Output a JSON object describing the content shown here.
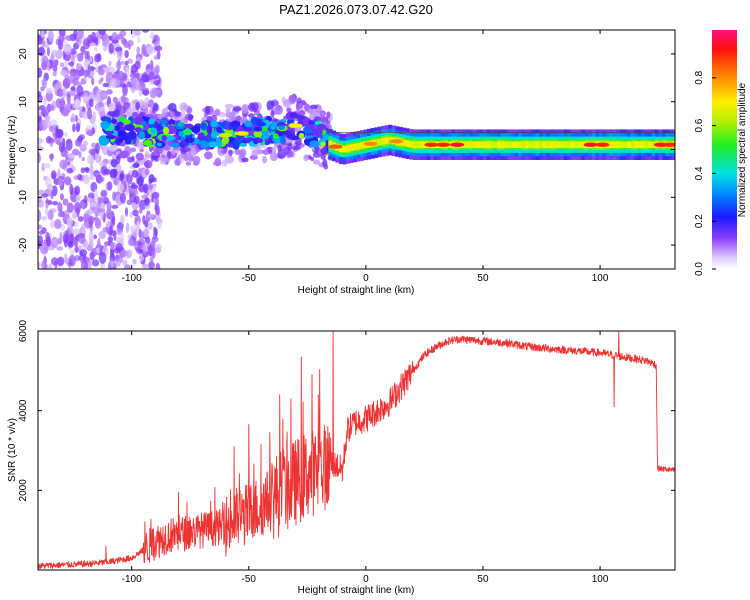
{
  "title": "PAZ1.2026.073.07.42.G20",
  "chart_data": [
    {
      "type": "heatmap",
      "title": "PAZ1.2026.073.07.42.G20",
      "xlabel": "Height of straight line (km)",
      "ylabel": "Frequency (Hz)",
      "xlim": [
        -140,
        132
      ],
      "ylim": [
        -25,
        25
      ],
      "xticks": [
        -100,
        -50,
        0,
        50,
        100
      ],
      "yticks": [
        -20,
        -10,
        0,
        10,
        20
      ],
      "xticklabels": [
        "-100",
        "-50",
        "0",
        "50",
        "100"
      ],
      "yticklabels": [
        "-20",
        "-10",
        "0",
        "10",
        "20"
      ],
      "colormap": "rainbow (violet to red)",
      "ridge": {
        "x": [
          -140,
          -120,
          -100,
          -80,
          -60,
          -40,
          -30,
          -20,
          -15,
          -10,
          0,
          10,
          20,
          30,
          50,
          70,
          90,
          110,
          132
        ],
        "frequency": [
          3,
          4,
          4,
          3,
          3,
          4,
          5,
          3,
          1,
          0,
          1,
          2,
          1,
          1,
          1,
          1,
          1,
          1,
          1
        ]
      },
      "colorbar": {
        "label": "Normalized spectral amplitude",
        "range": [
          0,
          1
        ],
        "ticks": [
          0.0,
          0.2,
          0.4,
          0.6,
          0.8
        ],
        "ticklabels": [
          "0.0",
          "0.2",
          "0.4",
          "0.6",
          "0.8"
        ]
      }
    },
    {
      "type": "line",
      "xlabel": "Height of straight line (km)",
      "ylabel": "SNR (10 * v/v)",
      "xlim": [
        -140,
        132
      ],
      "ylim": [
        0,
        6000
      ],
      "xticks": [
        -100,
        -50,
        0,
        50,
        100
      ],
      "yticks": [
        2000,
        4000,
        6000
      ],
      "xticklabels": [
        "-100",
        "-50",
        "0",
        "50",
        "100"
      ],
      "yticklabels": [
        "2000",
        "4000",
        "6000"
      ],
      "color": "#ee3333",
      "series": [
        {
          "name": "SNR",
          "x": [
            -140,
            -120,
            -110,
            -100,
            -95,
            -90,
            -85,
            -80,
            -70,
            -60,
            -55,
            -50,
            -45,
            -40,
            -30,
            -25,
            -20,
            -15,
            -12,
            -10,
            -8,
            -5,
            0,
            5,
            10,
            15,
            20,
            25,
            30,
            35,
            40,
            50,
            60,
            70,
            80,
            90,
            100,
            110,
            120,
            124,
            124.5,
            132
          ],
          "y": [
            100,
            150,
            200,
            300,
            500,
            700,
            850,
            900,
            1000,
            1100,
            1300,
            1400,
            1600,
            1800,
            2200,
            2400,
            2500,
            2700,
            2600,
            2500,
            3500,
            3700,
            3800,
            4000,
            4200,
            4600,
            5000,
            5400,
            5600,
            5750,
            5800,
            5750,
            5700,
            5600,
            5550,
            5500,
            5450,
            5350,
            5250,
            5150,
            2550,
            2500
          ]
        }
      ],
      "spikes": [
        {
          "x": -111,
          "y": 600
        },
        {
          "x": -80,
          "y": 1950
        },
        {
          "x": -50,
          "y": 3650
        },
        {
          "x": -32,
          "y": 4300
        },
        {
          "x": -23,
          "y": 4900
        },
        {
          "x": -14,
          "y": 6000
        },
        {
          "x": 94,
          "y": 5500
        },
        {
          "x": 106,
          "y": 4100
        },
        {
          "x": 108,
          "y": 6000
        }
      ]
    }
  ]
}
